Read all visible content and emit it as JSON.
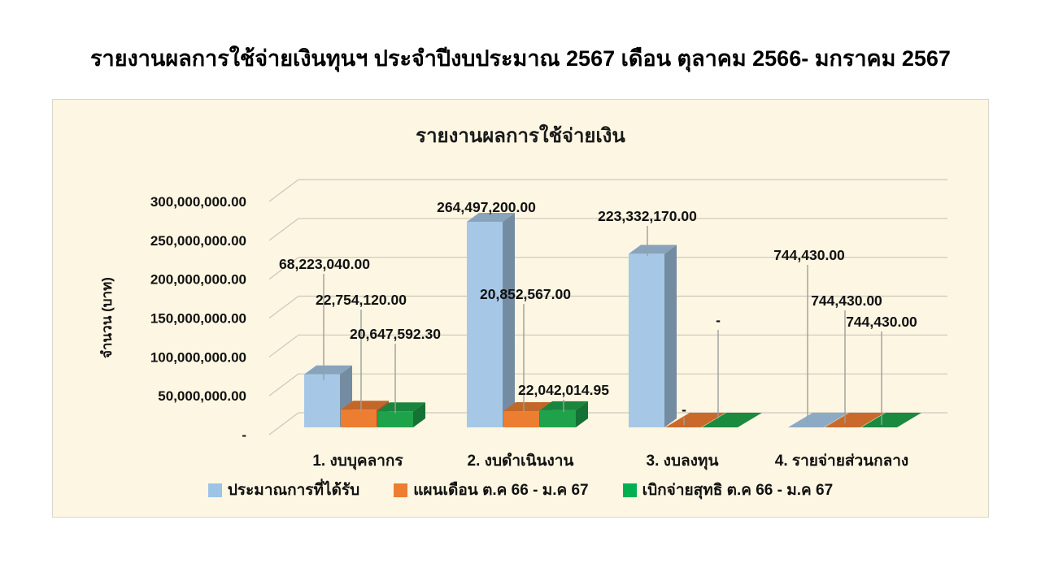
{
  "page_title": "รายงานผลการใช้จ่ายเงินทุนฯ ประจำปีงบประมาณ 2567 เดือน ตุลาคม 2566- มกราคม 2567",
  "chart": {
    "title": "รายงานผลการใช้จ่ายเงิน",
    "y_axis_title": "จำนวน (บาท)",
    "background_color": "#FDF6E2",
    "gridline_color": "#CBC8BC",
    "leader_line_color": "#9E9E9E",
    "y_ticks": [
      "300,000,000.00",
      "250,000,000.00",
      "200,000,000.00",
      "150,000,000.00",
      "100,000,000.00",
      "50,000,000.00",
      "-"
    ]
  },
  "chart_data": {
    "type": "bar",
    "projection": "3d",
    "title": "รายงานผลการใช้จ่ายเงิน",
    "categories": [
      "1. งบบุคลากร",
      "2. งบดำเนินงาน",
      "3. งบลงทุน",
      "4. รายจ่ายส่วนกลาง"
    ],
    "series": [
      {
        "name": "ประมาณการที่ได้รับ",
        "color": "#9DC3E6",
        "bar_color": "#A6C8E6",
        "values": [
          68223040.0,
          264497200.0,
          223332170.0,
          744430.0
        ],
        "labels": [
          "68,223,040.00",
          "264,497,200.00",
          "223,332,170.00",
          "744,430.00"
        ]
      },
      {
        "name": "แผนเดือน ต.ค 66 - ม.ค 67",
        "color": "#ED7D31",
        "bar_color": "#ED7D31",
        "values": [
          22754120.0,
          20852567.0,
          0,
          744430.0
        ],
        "labels": [
          "22,754,120.00",
          "20,852,567.00",
          "-",
          "744,430.00"
        ]
      },
      {
        "name": "เบิกจ่ายสุทธิ ต.ค 66 - ม.ค 67",
        "color": "#00B050",
        "bar_color": "#1EA24A",
        "values": [
          20647592.3,
          22042014.95,
          0,
          744430.0
        ],
        "labels": [
          "20,647,592.30",
          "22,042,014.95",
          "-",
          "744,430.00"
        ]
      }
    ],
    "ylabel": "จำนวน (บาท)",
    "ylim": [
      0,
      300000000
    ],
    "y_tick_step": 50000000,
    "grid": true,
    "legend_position": "bottom"
  }
}
